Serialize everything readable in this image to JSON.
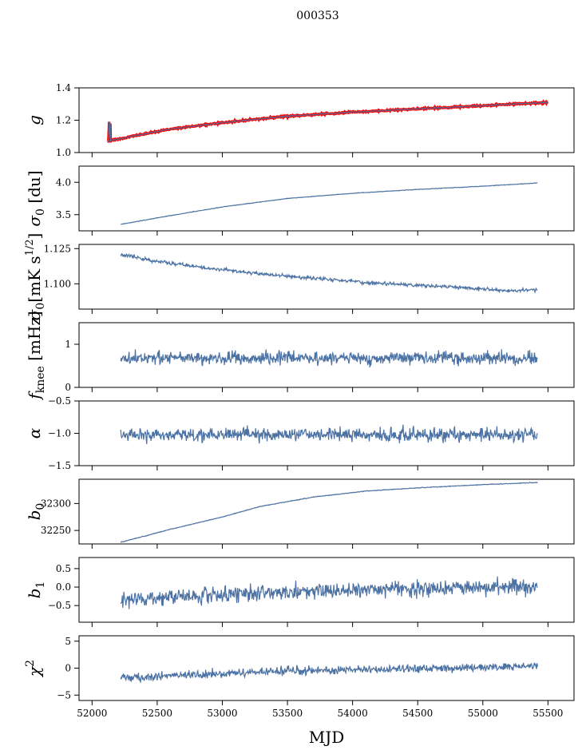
{
  "title": "000353",
  "xlabel": "MJD",
  "colors": {
    "series": "#4c72a4",
    "highlight": "#ff0000"
  },
  "x_ticks": [
    52000,
    52500,
    53000,
    53500,
    54000,
    54500,
    55000,
    55500
  ],
  "chart_data": [
    {
      "type": "line",
      "ylabel": "g",
      "ylim": [
        1.0,
        1.4
      ],
      "y_ticks": [
        1.0,
        1.2,
        1.4
      ],
      "y_tick_labels": [
        "1.0",
        "1.2",
        "1.4"
      ],
      "x_range": [
        52120,
        55500
      ],
      "trend": [
        [
          52120,
          1.07
        ],
        [
          52300,
          1.1
        ],
        [
          52600,
          1.145
        ],
        [
          53000,
          1.185
        ],
        [
          53500,
          1.225
        ],
        [
          54000,
          1.25
        ],
        [
          54500,
          1.27
        ],
        [
          55000,
          1.29
        ],
        [
          55500,
          1.31
        ]
      ],
      "noise": 0.004,
      "spike": {
        "x": 52125,
        "y_top": 1.19,
        "y_bottom": 1.07
      },
      "overlay_color": "highlight"
    },
    {
      "type": "line",
      "ylabel": "σ0 [du]",
      "ylim": [
        3.25,
        4.25
      ],
      "y_ticks": [
        3.5,
        4.0
      ],
      "y_tick_labels": [
        "3.5",
        "4.0"
      ],
      "x_range": [
        52220,
        55420
      ],
      "trend": [
        [
          52220,
          3.35
        ],
        [
          52500,
          3.45
        ],
        [
          53000,
          3.62
        ],
        [
          53500,
          3.75
        ],
        [
          54000,
          3.83
        ],
        [
          54500,
          3.89
        ],
        [
          55000,
          3.94
        ],
        [
          55420,
          3.99
        ]
      ],
      "noise": 0.004
    },
    {
      "type": "line",
      "ylabel": "σ0[mK s1/2]",
      "ylim": [
        1.082,
        1.128
      ],
      "y_ticks": [
        1.1,
        1.125
      ],
      "y_tick_labels": [
        "1.100",
        "1.125"
      ],
      "x_range": [
        52220,
        55420
      ],
      "trend": [
        [
          52220,
          1.121
        ],
        [
          52500,
          1.116
        ],
        [
          52900,
          1.111
        ],
        [
          53300,
          1.107
        ],
        [
          53700,
          1.104
        ],
        [
          54100,
          1.101
        ],
        [
          54500,
          1.099
        ],
        [
          54900,
          1.097
        ],
        [
          55200,
          1.095
        ],
        [
          55420,
          1.096
        ]
      ],
      "noise": 0.0012
    },
    {
      "type": "line",
      "ylabel": "fknee [mHz]",
      "ylim": [
        0,
        1.5
      ],
      "y_ticks": [
        0,
        1
      ],
      "y_tick_labels": [
        "0",
        "1"
      ],
      "x_range": [
        52220,
        55420
      ],
      "trend": [
        [
          52220,
          0.68
        ],
        [
          55420,
          0.68
        ]
      ],
      "noise": 0.14
    },
    {
      "type": "line",
      "ylabel": "α",
      "ylim": [
        -1.5,
        -0.5
      ],
      "y_ticks": [
        -1.5,
        -1.0,
        -0.5
      ],
      "y_tick_labels": [
        "−1.5",
        "−1.0",
        "−0.5"
      ],
      "x_range": [
        52220,
        55420
      ],
      "trend": [
        [
          52220,
          -1.02
        ],
        [
          55420,
          -1.02
        ]
      ],
      "noise": 0.1
    },
    {
      "type": "line",
      "ylabel": "b0",
      "ylim": [
        32225,
        32345
      ],
      "y_ticks": [
        32250,
        32300
      ],
      "y_tick_labels": [
        "32250",
        "32300"
      ],
      "x_range": [
        52220,
        55420
      ],
      "trend": [
        [
          52220,
          32228
        ],
        [
          52600,
          32252
        ],
        [
          53000,
          32275
        ],
        [
          53300,
          32295
        ],
        [
          53700,
          32312
        ],
        [
          54100,
          32323
        ],
        [
          54500,
          32329
        ],
        [
          55000,
          32335
        ],
        [
          55420,
          32339
        ]
      ],
      "noise": 0.6
    },
    {
      "type": "line",
      "ylabel": "b1",
      "ylim": [
        -0.95,
        0.8
      ],
      "y_ticks": [
        -0.5,
        0.0,
        0.5
      ],
      "y_tick_labels": [
        "−0.5",
        "0.0",
        "0.5"
      ],
      "x_range": [
        52220,
        55420
      ],
      "trend": [
        [
          52220,
          -0.35
        ],
        [
          53000,
          -0.2
        ],
        [
          54000,
          -0.08
        ],
        [
          55000,
          0.0
        ],
        [
          55420,
          0.02
        ]
      ],
      "noise": 0.2
    },
    {
      "type": "line",
      "ylabel": "χ2",
      "ylim": [
        -6,
        6
      ],
      "y_ticks": [
        -5,
        0,
        5
      ],
      "y_tick_labels": [
        "−5",
        "0",
        "5"
      ],
      "x_range": [
        52220,
        55420
      ],
      "trend": [
        [
          52220,
          -1.8
        ],
        [
          52600,
          -1.4
        ],
        [
          53000,
          -1.0
        ],
        [
          53500,
          -0.5
        ],
        [
          54000,
          -0.3
        ],
        [
          54500,
          -0.1
        ],
        [
          55000,
          0.2
        ],
        [
          55420,
          0.4
        ]
      ],
      "noise": 0.75
    }
  ]
}
